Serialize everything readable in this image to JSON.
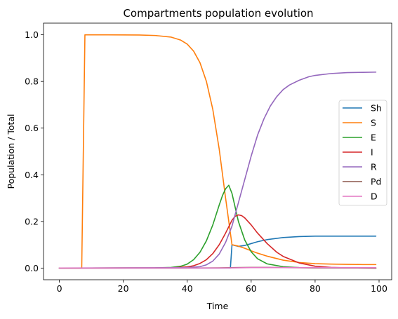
{
  "chart_data": {
    "type": "line",
    "title": "Compartments population evolution",
    "xlabel": "Time",
    "ylabel": "Population / Total",
    "xlim": [
      -4.95,
      103.95
    ],
    "ylim": [
      -0.05,
      1.05
    ],
    "xticks": [
      0,
      20,
      40,
      60,
      80,
      100
    ],
    "yticks": [
      0.0,
      0.2,
      0.4,
      0.6,
      0.8,
      1.0
    ],
    "xtick_labels": [
      "0",
      "20",
      "40",
      "60",
      "80",
      "100"
    ],
    "ytick_labels": [
      "0.0",
      "0.2",
      "0.4",
      "0.6",
      "0.8",
      "1.0"
    ],
    "legend_position": "center-right",
    "series": [
      {
        "name": "Sh",
        "color": "#1f77b4",
        "x": [
          0,
          53.5,
          54,
          56,
          58,
          60,
          62,
          65,
          70,
          75,
          80,
          85,
          90,
          95,
          99
        ],
        "y": [
          0,
          0,
          0.1,
          0.093,
          0.097,
          0.105,
          0.113,
          0.122,
          0.131,
          0.135,
          0.137,
          0.137,
          0.137,
          0.137,
          0.137
        ]
      },
      {
        "name": "S",
        "color": "#ff7f0e",
        "x": [
          0,
          7,
          8,
          15,
          25,
          30,
          35,
          38,
          40,
          42,
          44,
          46,
          48,
          50,
          52,
          54,
          56,
          58,
          60,
          62,
          65,
          70,
          75,
          80,
          85,
          90,
          95,
          99
        ],
        "y": [
          0,
          0,
          1.0,
          1.0,
          0.999,
          0.997,
          0.99,
          0.977,
          0.96,
          0.93,
          0.88,
          0.8,
          0.68,
          0.51,
          0.3,
          0.1,
          0.094,
          0.085,
          0.074,
          0.064,
          0.051,
          0.034,
          0.024,
          0.019,
          0.017,
          0.016,
          0.015,
          0.015
        ]
      },
      {
        "name": "E",
        "color": "#2ca02c",
        "x": [
          0,
          30,
          35,
          38,
          40,
          42,
          44,
          46,
          48,
          50,
          51,
          52,
          53,
          54,
          55,
          56,
          58,
          60,
          62,
          65,
          70,
          75,
          80,
          99
        ],
        "y": [
          0,
          0.001,
          0.003,
          0.008,
          0.017,
          0.036,
          0.068,
          0.117,
          0.185,
          0.27,
          0.31,
          0.34,
          0.355,
          0.32,
          0.26,
          0.2,
          0.12,
          0.07,
          0.04,
          0.018,
          0.006,
          0.002,
          0.001,
          0
        ]
      },
      {
        "name": "I",
        "color": "#d62728",
        "x": [
          0,
          35,
          40,
          42,
          44,
          46,
          48,
          50,
          52,
          54,
          55,
          56,
          57,
          58,
          60,
          62,
          65,
          68,
          70,
          75,
          80,
          85,
          90,
          99
        ],
        "y": [
          0,
          0.001,
          0.005,
          0.01,
          0.02,
          0.036,
          0.062,
          0.1,
          0.15,
          0.205,
          0.222,
          0.228,
          0.225,
          0.215,
          0.185,
          0.15,
          0.105,
          0.068,
          0.05,
          0.022,
          0.008,
          0.003,
          0.001,
          0
        ]
      },
      {
        "name": "R",
        "color": "#9467bd",
        "x": [
          0,
          40,
          44,
          46,
          48,
          50,
          52,
          54,
          56,
          58,
          60,
          62,
          64,
          66,
          68,
          70,
          72,
          75,
          78,
          80,
          85,
          90,
          95,
          99
        ],
        "y": [
          0,
          0.002,
          0.006,
          0.014,
          0.03,
          0.06,
          0.11,
          0.18,
          0.28,
          0.38,
          0.48,
          0.57,
          0.64,
          0.695,
          0.735,
          0.765,
          0.785,
          0.805,
          0.82,
          0.826,
          0.834,
          0.838,
          0.839,
          0.84
        ]
      },
      {
        "name": "Pd",
        "color": "#8c564b",
        "x": [
          0,
          40,
          50,
          55,
          60,
          65,
          70,
          80,
          99
        ],
        "y": [
          0,
          0,
          0.001,
          0.002,
          0.003,
          0.003,
          0.002,
          0.001,
          0
        ]
      },
      {
        "name": "D",
        "color": "#e377c2",
        "x": [
          0,
          40,
          50,
          55,
          60,
          65,
          70,
          80,
          99
        ],
        "y": [
          0,
          0,
          0,
          0.001,
          0.002,
          0.002,
          0.002,
          0.002,
          0.002
        ]
      }
    ]
  }
}
